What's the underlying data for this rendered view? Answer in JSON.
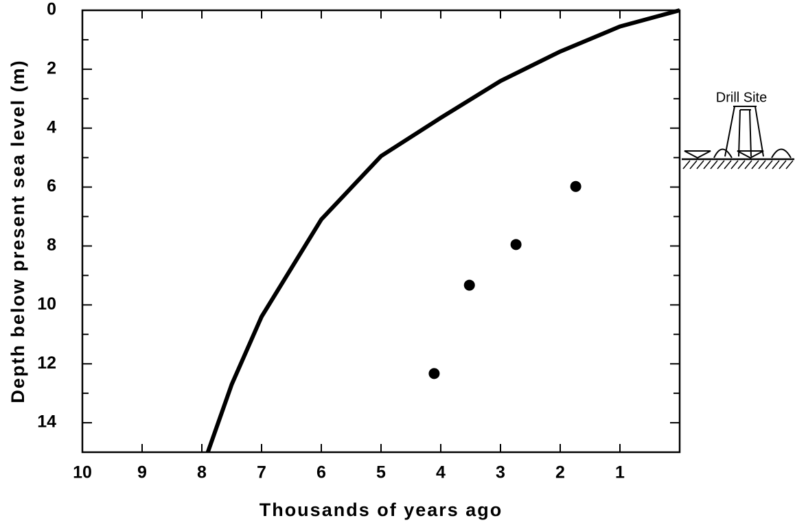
{
  "chart_data": {
    "type": "line",
    "x_label": "Thousands of years ago",
    "y_label": "Depth below present sea level (m)",
    "annotation": "Drill Site",
    "xlim": [
      10,
      0
    ],
    "xticks": [
      10,
      9,
      8,
      7,
      6,
      5,
      4,
      3,
      2,
      1
    ],
    "ylim": [
      0,
      15
    ],
    "yticks": [
      0,
      2,
      4,
      6,
      8,
      10,
      12,
      14
    ],
    "yminorticks": [
      1,
      3,
      5,
      7,
      9,
      11,
      13
    ],
    "series": [
      {
        "type": "line",
        "color": "#000000",
        "x": [
          0,
          1,
          2,
          3,
          4,
          5,
          6,
          7,
          7.5,
          7.9
        ],
        "values": [
          0,
          0.55,
          1.4,
          2.4,
          3.65,
          4.95,
          7.1,
          10.4,
          12.7,
          15
        ]
      },
      {
        "type": "scatter",
        "color": "#000000",
        "x": [
          1.74,
          2.74,
          3.52,
          4.11
        ],
        "values": [
          5.98,
          7.95,
          9.33,
          12.33
        ]
      }
    ]
  }
}
